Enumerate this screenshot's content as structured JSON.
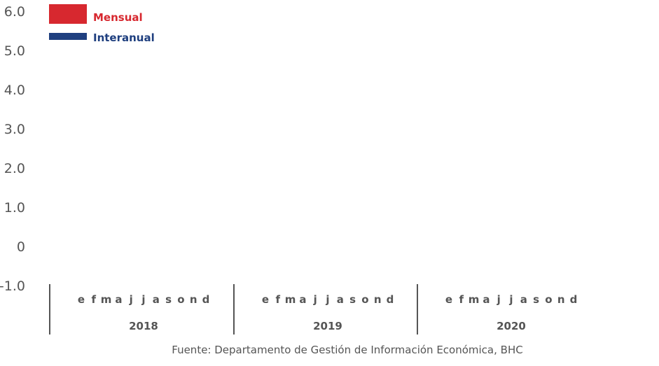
{
  "chart_data": {
    "type": "bar",
    "title": "",
    "ylabel": "",
    "xlabel": "",
    "ylim": [
      -1.0,
      6.0
    ],
    "y_ticks": [
      "6.0",
      "5.0",
      "4.0",
      "3.0",
      "2.0",
      "1.0",
      "0",
      "-1.0"
    ],
    "months": [
      "e",
      "f",
      "m",
      "a",
      "j",
      "j",
      "a",
      "s",
      "o",
      "n",
      "d"
    ],
    "years": [
      "2018",
      "2019",
      "2020"
    ],
    "series": [
      {
        "name": "Mensual",
        "color": "#d7282f",
        "values": []
      },
      {
        "name": "Interanual",
        "color": "#1f3f7f",
        "values": []
      }
    ],
    "legend_position": "top-left",
    "grid": false,
    "source": "Fuente: Departamento de Gestión de Información Económica, BHC"
  }
}
